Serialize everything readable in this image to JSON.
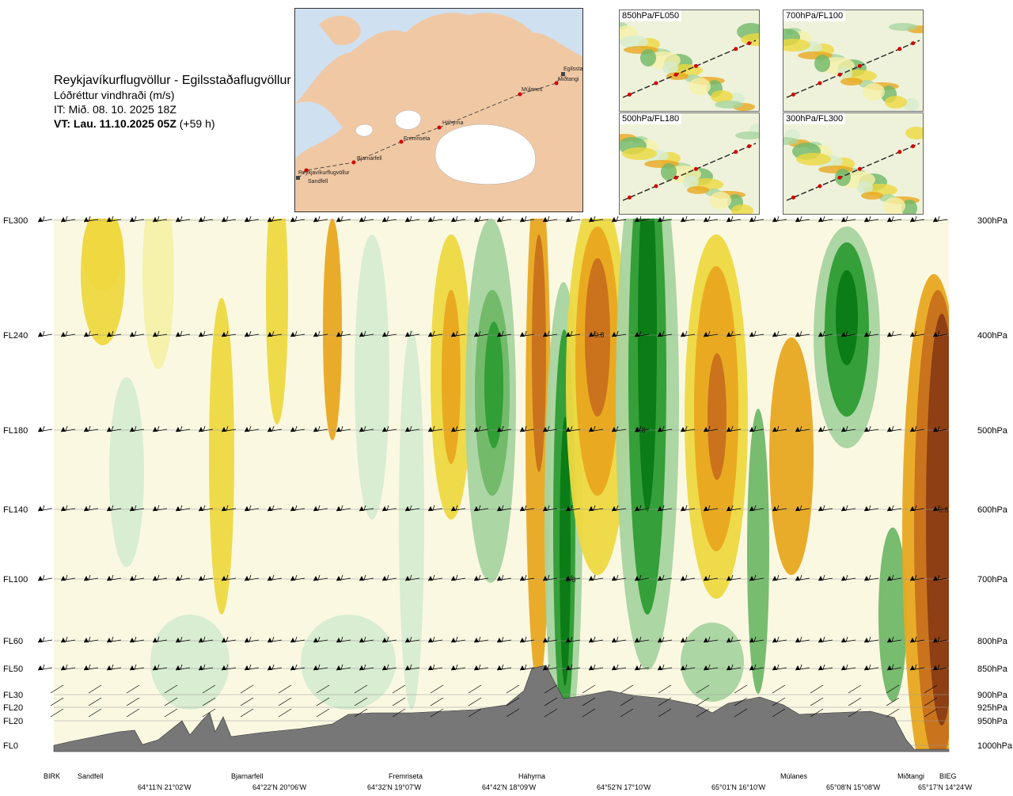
{
  "header": {
    "title": "Reykjavíkurflugvöllur - Egilsstaðaflugvöllur",
    "subtitle": "Lóðréttur vindhraði (m/s)",
    "it": "IT: Mið. 08. 10. 2025 18Z",
    "vt_bold": "VT: Lau. 11.10.2025 05Z",
    "vt_suffix": " (+59 h)"
  },
  "map": {
    "waypoints": [
      "Reykjavíkurflugvöllur",
      "Sandfell",
      "Bjarnarfell",
      "Fremriseta",
      "Háhyrna",
      "Múlanes",
      "Miðtangi",
      "Egilsstaðir"
    ],
    "route_color": "#d40000",
    "land_color": "#f0c8a4",
    "sea_color": "#cfe0f0",
    "ice_color": "#ffffff"
  },
  "insets": [
    {
      "label": "850hPa/FL050"
    },
    {
      "label": "700hPa/FL100"
    },
    {
      "label": "500hPa/FL180"
    },
    {
      "label": "300hPa/FL300"
    }
  ],
  "chart_data": {
    "type": "heatmap",
    "title": "Lóðréttur vindhraði (m/s)",
    "y_levels": [
      {
        "fl": "FL300",
        "hpa": "300hPa"
      },
      {
        "fl": "FL240",
        "hpa": "400hPa"
      },
      {
        "fl": "FL180",
        "hpa": "500hPa"
      },
      {
        "fl": "FL140",
        "hpa": "600hPa"
      },
      {
        "fl": "FL100",
        "hpa": "700hPa"
      },
      {
        "fl": "FL60",
        "hpa": "800hPa"
      },
      {
        "fl": "FL50",
        "hpa": "850hPa"
      },
      {
        "fl": "FL30",
        "hpa": "900hPa"
      },
      {
        "fl": "FL20",
        "hpa": "925hPa"
      },
      {
        "fl": "FL20",
        "hpa": "950hPa"
      },
      {
        "fl": "FL0",
        "hpa": "1000hPa"
      }
    ],
    "places": [
      "BIRK",
      "Sandfell",
      "Bjarnarfell",
      "Fremriseta",
      "Háhyrna",
      "Múlanes",
      "Miðtangi",
      "BIEG"
    ],
    "coords": [
      "64°11'N 21°02'W",
      "64°22'N 20°06'W",
      "64°32'N 19°07'W",
      "64°42'N 18°09'W",
      "64°52'N 17°10'W",
      "65°01'N 16°10'W",
      "65°08'N 15°08'W",
      "65°17'N 14°24'W"
    ],
    "annotations": [
      "-0.8",
      "0.8",
      "-0.8",
      "-0.8"
    ],
    "colors": {
      "strong_down": "#8a3c14",
      "down_3": "#c8701c",
      "down_2": "#e8a820",
      "down_1": "#eed840",
      "down_0": "#f6f0a8",
      "neutral": "#fbf8e2",
      "up_0": "#d6ecd0",
      "up_1": "#a8d4a0",
      "up_2": "#70b868",
      "up_3": "#2e9c34",
      "strong_up": "#0a7a14",
      "terrain": "#777777"
    }
  }
}
